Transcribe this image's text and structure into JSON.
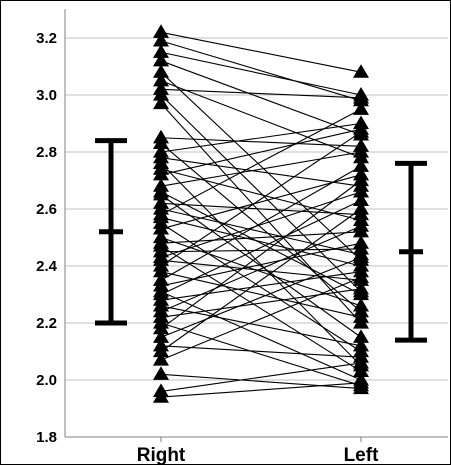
{
  "chart_data": {
    "type": "scatter",
    "title": "",
    "xlabel": "",
    "ylabel": "",
    "categories": [
      "Right",
      "Left"
    ],
    "ylim": [
      1.8,
      3.3
    ],
    "yticks": [
      1.8,
      2.0,
      2.2,
      2.4,
      2.6,
      2.8,
      3.0,
      3.2
    ],
    "ytick_labels": [
      "1.8",
      "2.0",
      "2.2",
      "2.4",
      "2.6",
      "2.8",
      "3.0",
      "3.2"
    ],
    "grid": true,
    "marker": "triangle",
    "pairs": [
      [
        3.22,
        3.08
      ],
      [
        3.19,
        2.98
      ],
      [
        3.15,
        3.0
      ],
      [
        3.12,
        2.86
      ],
      [
        3.08,
        2.42
      ],
      [
        3.05,
        2.78
      ],
      [
        3.02,
        2.99
      ],
      [
        3.0,
        2.31
      ],
      [
        2.97,
        2.2
      ],
      [
        2.85,
        2.82
      ],
      [
        2.83,
        2.24
      ],
      [
        2.8,
        2.9
      ],
      [
        2.78,
        2.68
      ],
      [
        2.76,
        2.05
      ],
      [
        2.74,
        2.56
      ],
      [
        2.72,
        2.88
      ],
      [
        2.68,
        2.8
      ],
      [
        2.66,
        2.3
      ],
      [
        2.65,
        2.15
      ],
      [
        2.62,
        2.58
      ],
      [
        2.6,
        2.44
      ],
      [
        2.58,
        2.95
      ],
      [
        2.57,
        2.4
      ],
      [
        2.55,
        2.1
      ],
      [
        2.53,
        2.72
      ],
      [
        2.5,
        2.26
      ],
      [
        2.48,
        2.52
      ],
      [
        2.47,
        2.03
      ],
      [
        2.45,
        2.46
      ],
      [
        2.43,
        2.66
      ],
      [
        2.42,
        2.35
      ],
      [
        2.4,
        2.87
      ],
      [
        2.38,
        2.22
      ],
      [
        2.35,
        2.75
      ],
      [
        2.33,
        2.48
      ],
      [
        2.31,
        2.0
      ],
      [
        2.3,
        2.63
      ],
      [
        2.28,
        2.38
      ],
      [
        2.26,
        2.12
      ],
      [
        2.24,
        2.54
      ],
      [
        2.22,
        2.32
      ],
      [
        2.2,
        1.98
      ],
      [
        2.18,
        2.7
      ],
      [
        2.15,
        2.43
      ],
      [
        2.12,
        2.08
      ],
      [
        2.1,
        2.6
      ],
      [
        2.07,
        2.36
      ],
      [
        2.02,
        1.97
      ],
      [
        1.96,
        2.06
      ],
      [
        1.94,
        1.99
      ]
    ],
    "series": [
      {
        "name": "",
        "category": "Right",
        "mean": 2.52,
        "lower": 2.2,
        "upper": 2.84
      },
      {
        "name": "",
        "category": "Left",
        "mean": 2.45,
        "lower": 2.14,
        "upper": 2.76
      }
    ]
  },
  "colors": {
    "background": "#ffffff",
    "grid": "#c0c0c0",
    "axis": "#808080",
    "marker": "#000000",
    "line": "#000000",
    "errorbar": "#000000"
  }
}
